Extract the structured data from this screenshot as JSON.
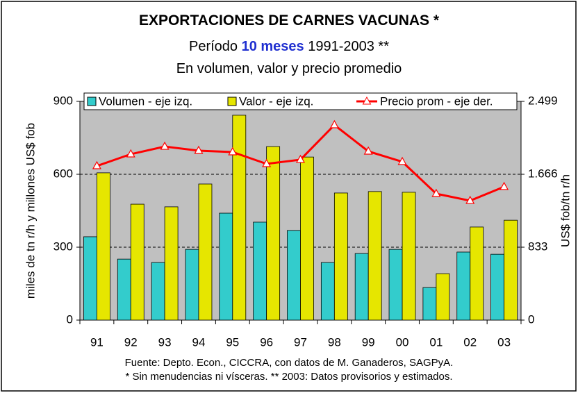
{
  "chart_data": {
    "type": "bar",
    "title": "EXPORTACIONES DE CARNES VACUNAS *",
    "subtitle_parts": [
      "Período ",
      "10 meses",
      " 1991-2003 **"
    ],
    "subtitle2": "En volumen, valor y precio promedio",
    "ylabel": "miles de tn r/h y millones US$ fob",
    "y2label": "US$ fob/tn r/h",
    "footnotes": [
      "Fuente: Depto. Econ., CICCRA, con datos de M. Ganaderos, SAGPyA.",
      "* Sin menudencias ni vísceras. ** 2003: Datos provisorios y estimados."
    ],
    "categories": [
      "91",
      "92",
      "93",
      "94",
      "95",
      "96",
      "97",
      "98",
      "99",
      "00",
      "01",
      "02",
      "03"
    ],
    "series": [
      {
        "name": "Volumen - eje izq.",
        "type": "bar",
        "color": "#33cccc",
        "values": [
          343,
          251,
          237,
          291,
          440,
          403,
          369,
          237,
          274,
          291,
          134,
          280,
          271
        ]
      },
      {
        "name": "Valor - eje izq.",
        "type": "bar",
        "color": "#e6e600",
        "values": [
          606,
          477,
          466,
          560,
          843,
          714,
          671,
          523,
          529,
          526,
          191,
          383,
          411
        ]
      },
      {
        "name": "Precio prom - eje der.",
        "type": "line",
        "axis": "y2",
        "color": "#ff0000",
        "values": [
          1761,
          1896,
          1983,
          1936,
          1920,
          1785,
          1833,
          2229,
          1928,
          1809,
          1444,
          1364,
          1523
        ]
      }
    ],
    "ylim": [
      0,
      900
    ],
    "yticks": [
      0,
      300,
      600,
      900
    ],
    "y2lim": [
      0,
      2499
    ],
    "y2ticks": [
      0,
      833,
      {
        "value": 1666,
        "label": "1.666"
      },
      {
        "value": 2499,
        "label": "2.499"
      }
    ],
    "grid": true,
    "legend": "top"
  }
}
